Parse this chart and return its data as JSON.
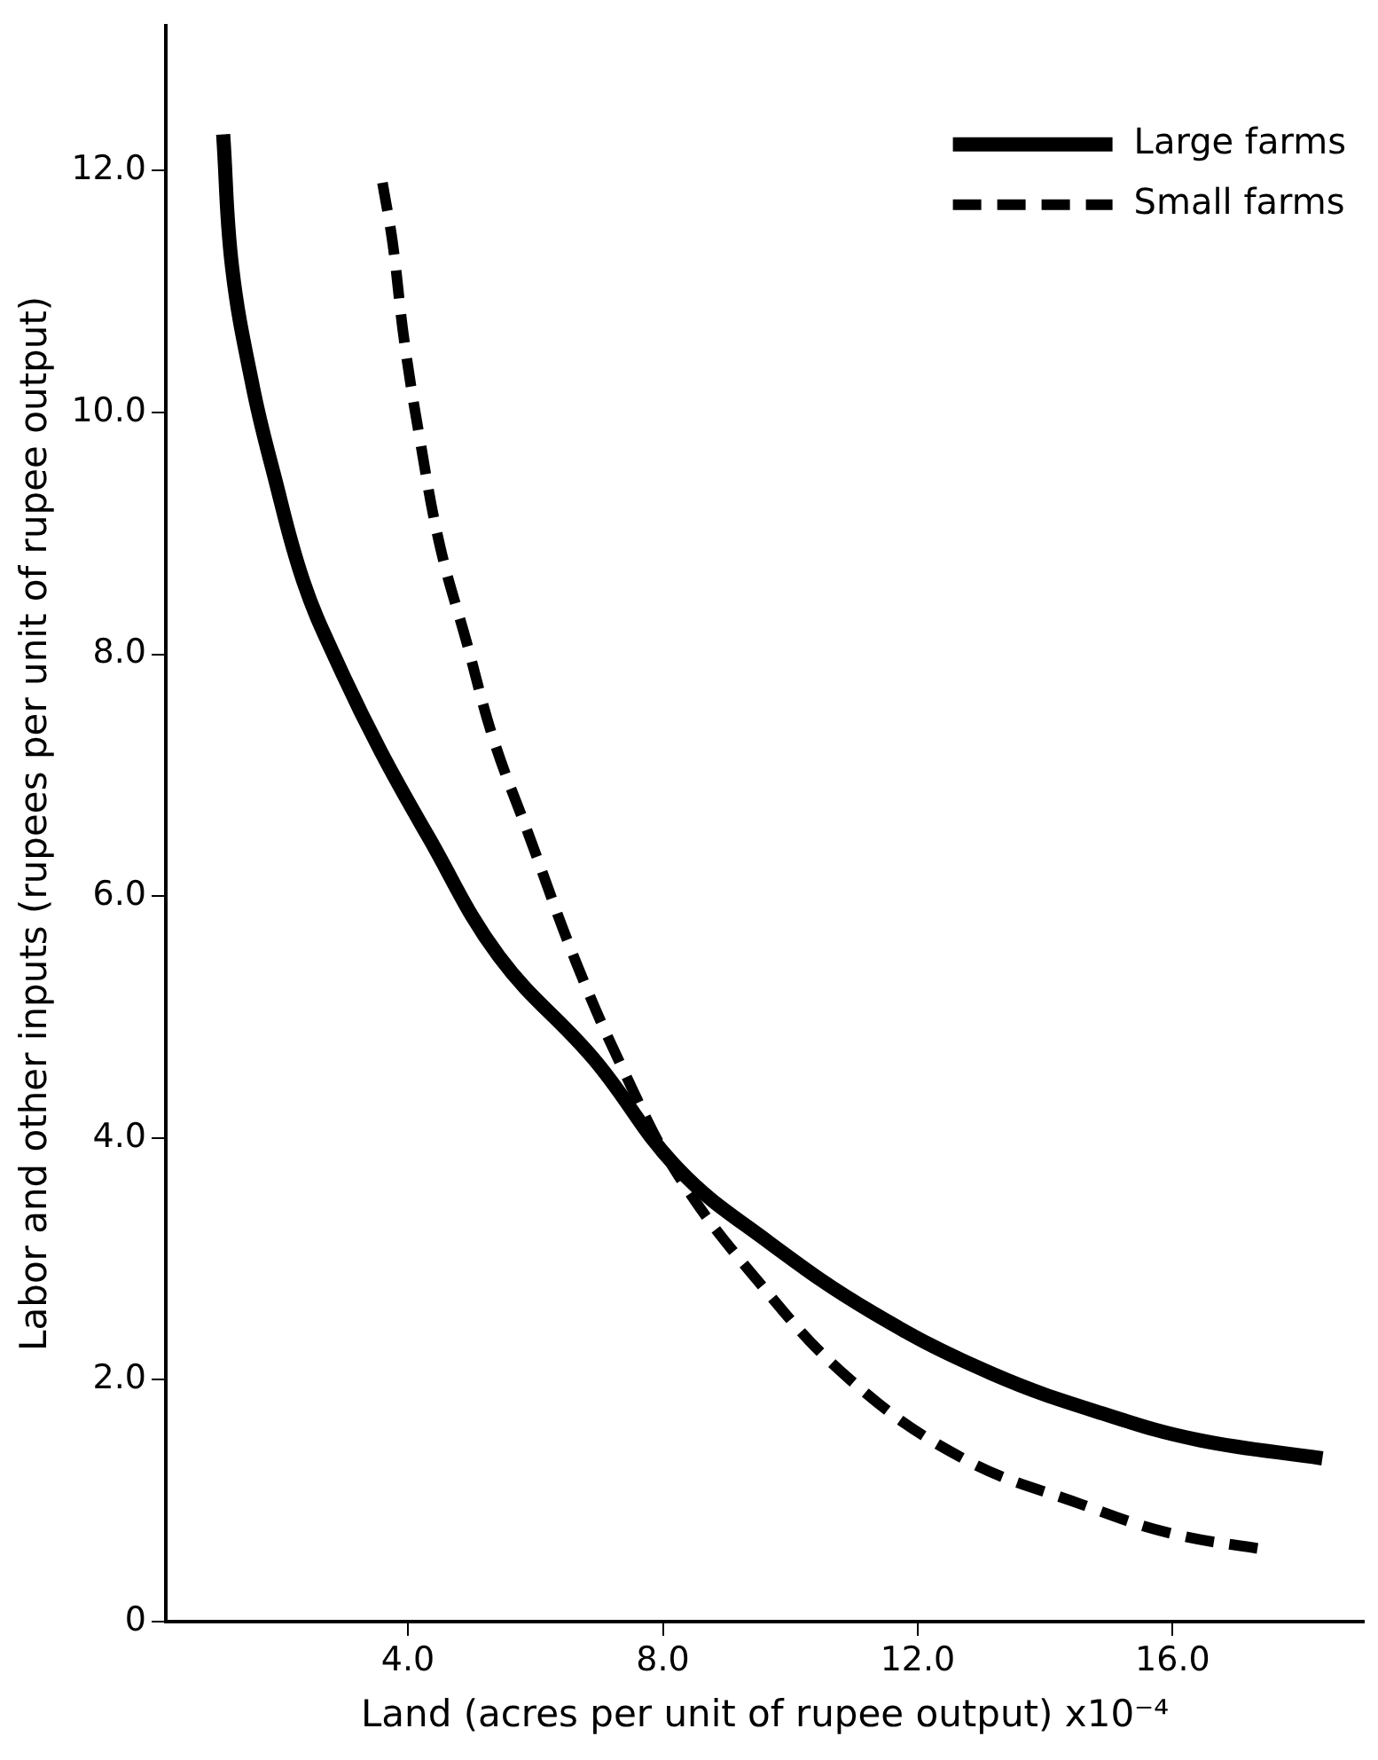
{
  "chart_data": {
    "type": "line",
    "xlabel": "Land (acres per unit of rupee output) x10⁻⁴",
    "ylabel": "Labor and other inputs (rupees per unit of rupee output)",
    "xlim": [
      0.2,
      19
    ],
    "xticks": [
      {
        "value": 4,
        "label": "4.0"
      },
      {
        "value": 8,
        "label": "8.0"
      },
      {
        "value": 12,
        "label": "12.0"
      },
      {
        "value": 16,
        "label": "16.0"
      }
    ],
    "ylim": [
      0,
      13.2
    ],
    "yticks": [
      0,
      {
        "value": 2,
        "label": "2.0"
      },
      {
        "value": 4,
        "label": "4.0"
      },
      {
        "value": 6,
        "label": "6.0"
      },
      {
        "value": 8,
        "label": "8.0"
      },
      {
        "value": 10,
        "label": "10.0"
      },
      {
        "value": 12,
        "label": "12.0"
      }
    ],
    "grid": false,
    "legend": "top right",
    "marker": "none",
    "series": [
      {
        "name": "Large farms",
        "color": "#000000",
        "line_style": "solid",
        "x": [
          1.1,
          1.24,
          1.57,
          1.89,
          2.36,
          2.92,
          3.57,
          4.31,
          5.43,
          6.92,
          8.23,
          9.63,
          11.31,
          13.17,
          15.03,
          16.43,
          18.35
        ],
        "values": [
          12.3,
          11.2,
          10.2,
          9.5,
          8.6,
          7.9,
          7.2,
          6.5,
          5.5,
          4.65,
          3.75,
          3.15,
          2.55,
          2.05,
          1.7,
          1.5,
          1.35
        ]
      },
      {
        "name": "Small farms",
        "color": "#000000",
        "line_style": "dashed",
        "x": [
          3.6,
          3.76,
          3.94,
          4.18,
          4.5,
          4.92,
          5.34,
          5.9,
          6.64,
          7.39,
          8.23,
          9.44,
          10.94,
          12.71,
          14.57,
          15.97,
          17.51
        ],
        "values": [
          11.9,
          11.4,
          10.6,
          9.8,
          8.9,
          8.1,
          7.3,
          6.5,
          5.45,
          4.55,
          3.7,
          2.85,
          2.0,
          1.35,
          0.97,
          0.73,
          0.59
        ]
      }
    ]
  }
}
